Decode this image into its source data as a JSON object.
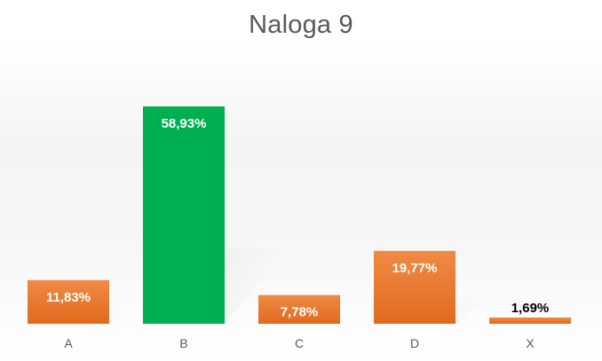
{
  "chart_data": {
    "type": "bar",
    "title": "Naloga 9",
    "xlabel": "",
    "ylabel": "",
    "categories": [
      "A",
      "B",
      "C",
      "D",
      "X"
    ],
    "values": [
      11.83,
      58.93,
      7.78,
      19.77,
      1.69
    ],
    "data_labels": [
      "11,83%",
      "58,93%",
      "7,78%",
      "19,77%",
      "1,69%"
    ],
    "bar_colors": [
      "#ED7D31",
      "#00B050",
      "#ED7D31",
      "#ED7D31",
      "#ED7D31"
    ],
    "label_colors": [
      "#ffffff",
      "#ffffff",
      "#ffffff",
      "#ffffff",
      "#000000"
    ],
    "ylim": [
      0,
      65
    ],
    "grid": false,
    "legend": "none"
  }
}
